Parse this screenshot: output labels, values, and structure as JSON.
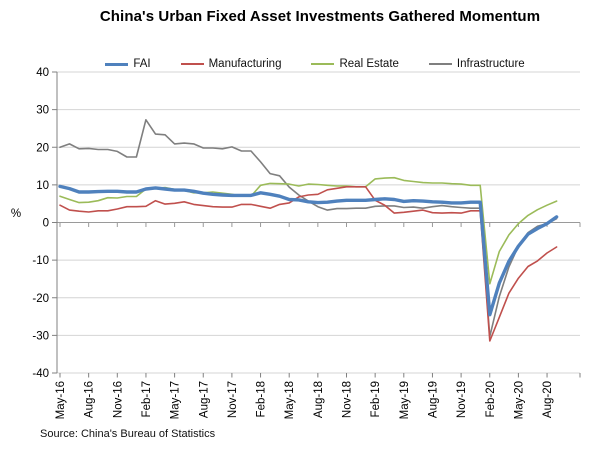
{
  "source_note": "Source: China's Bureau of Statistics",
  "chart_data": {
    "type": "line",
    "title": "China's Urban Fixed Asset Investments Gathered Momentum",
    "xlabel": "",
    "ylabel": "%",
    "ylim": [
      -40,
      40
    ],
    "ytick_interval": 10,
    "grid": true,
    "legend_position": "top",
    "x_tick_labels": [
      "May-16",
      "Aug-16",
      "Nov-16",
      "Feb-17",
      "May-17",
      "Aug-17",
      "Nov-17",
      "Feb-18",
      "May-18",
      "Aug-18",
      "Nov-18",
      "Feb-19",
      "May-19",
      "Aug-19",
      "Nov-19",
      "Feb-20",
      "May-20",
      "Aug-20"
    ],
    "x_tick_every": 3,
    "x": [
      "May-16",
      "Jun-16",
      "Jul-16",
      "Aug-16",
      "Sep-16",
      "Oct-16",
      "Nov-16",
      "Dec-16",
      "Jan-17",
      "Feb-17",
      "Mar-17",
      "Apr-17",
      "May-17",
      "Jun-17",
      "Jul-17",
      "Aug-17",
      "Sep-17",
      "Oct-17",
      "Nov-17",
      "Dec-17",
      "Jan-18",
      "Feb-18",
      "Mar-18",
      "Apr-18",
      "May-18",
      "Jun-18",
      "Jul-18",
      "Aug-18",
      "Sep-18",
      "Oct-18",
      "Nov-18",
      "Dec-18",
      "Jan-19",
      "Feb-19",
      "Mar-19",
      "Apr-19",
      "May-19",
      "Jun-19",
      "Jul-19",
      "Aug-19",
      "Sep-19",
      "Oct-19",
      "Nov-19",
      "Dec-19",
      "Jan-20",
      "Feb-20",
      "Mar-20",
      "Apr-20",
      "May-20",
      "Jun-20",
      "Jul-20",
      "Aug-20",
      "Sep-20"
    ],
    "series": [
      {
        "name": "Infrastructure",
        "color": "#7f7f7f",
        "line_width": 1.6,
        "values": [
          20.0,
          20.9,
          19.6,
          19.7,
          19.4,
          19.4,
          18.9,
          17.4,
          17.4,
          27.3,
          23.5,
          23.3,
          20.9,
          21.1,
          20.9,
          19.8,
          19.8,
          19.6,
          20.1,
          19.0,
          19.0,
          16.1,
          13.0,
          12.4,
          9.4,
          7.3,
          5.7,
          4.2,
          3.3,
          3.7,
          3.7,
          3.8,
          3.8,
          4.3,
          4.4,
          4.4,
          4.0,
          4.1,
          3.8,
          4.2,
          4.5,
          4.2,
          4.0,
          3.8,
          3.8,
          -30.3,
          -19.7,
          -11.8,
          -6.3,
          -2.7,
          -1.0,
          -0.3,
          1.0
        ]
      },
      {
        "name": "Real Estate",
        "color": "#9bbb59",
        "line_width": 1.6,
        "values": [
          7.0,
          6.1,
          5.3,
          5.4,
          5.8,
          6.6,
          6.5,
          6.9,
          6.9,
          8.9,
          9.1,
          9.3,
          8.8,
          8.5,
          7.9,
          7.9,
          8.1,
          7.8,
          7.5,
          7.0,
          7.0,
          9.9,
          10.4,
          10.3,
          10.2,
          9.7,
          10.2,
          10.1,
          9.9,
          9.7,
          9.7,
          9.5,
          9.5,
          11.6,
          11.8,
          11.9,
          11.2,
          10.9,
          10.6,
          10.5,
          10.5,
          10.3,
          10.2,
          9.9,
          9.9,
          -16.3,
          -7.7,
          -3.3,
          -0.3,
          1.9,
          3.4,
          4.6,
          5.7
        ]
      },
      {
        "name": "Manufacturing",
        "color": "#c0504d",
        "line_width": 1.6,
        "values": [
          4.6,
          3.3,
          3.0,
          2.8,
          3.1,
          3.1,
          3.6,
          4.2,
          4.2,
          4.3,
          5.8,
          4.9,
          5.1,
          5.5,
          4.8,
          4.5,
          4.2,
          4.1,
          4.1,
          4.8,
          4.8,
          4.3,
          3.8,
          4.8,
          5.2,
          6.8,
          7.3,
          7.5,
          8.7,
          9.1,
          9.5,
          9.5,
          9.5,
          5.9,
          4.6,
          2.5,
          2.7,
          3.0,
          3.3,
          2.6,
          2.5,
          2.6,
          2.5,
          3.1,
          3.1,
          -31.5,
          -25.2,
          -18.8,
          -14.8,
          -11.7,
          -10.2,
          -8.1,
          -6.5
        ]
      },
      {
        "name": "FAI",
        "color": "#4f81bd",
        "line_width": 3.4,
        "values": [
          9.6,
          9.0,
          8.1,
          8.1,
          8.2,
          8.3,
          8.3,
          8.1,
          8.1,
          8.9,
          9.2,
          8.9,
          8.6,
          8.6,
          8.3,
          7.8,
          7.5,
          7.3,
          7.2,
          7.2,
          7.2,
          7.9,
          7.5,
          7.0,
          6.1,
          6.0,
          5.5,
          5.3,
          5.4,
          5.7,
          5.9,
          5.9,
          5.9,
          6.1,
          6.3,
          6.1,
          5.6,
          5.8,
          5.7,
          5.5,
          5.4,
          5.2,
          5.2,
          5.4,
          5.4,
          -24.5,
          -16.1,
          -10.3,
          -6.3,
          -3.1,
          -1.6,
          -0.3,
          1.5
        ]
      }
    ],
    "legend_order": [
      "FAI",
      "Manufacturing",
      "Real Estate",
      "Infrastructure"
    ]
  }
}
